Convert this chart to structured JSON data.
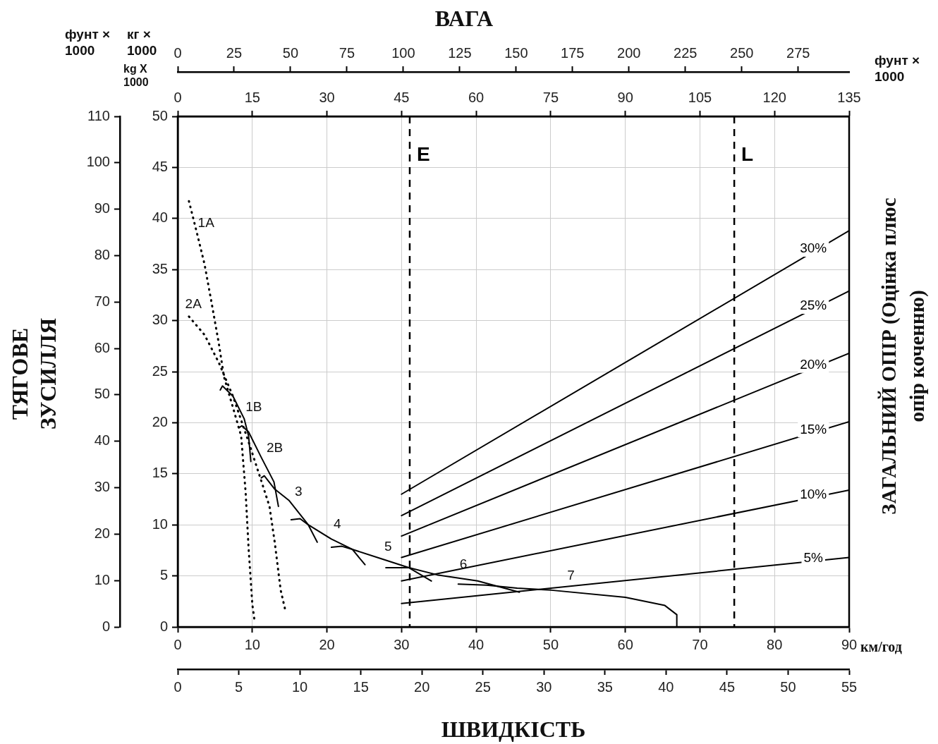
{
  "chart_data": {
    "type": "line",
    "xlabel": "ШВИДКІСТЬ",
    "x2label": "ВАГА",
    "ylabel": "ТЯГОВЕ ЗУСИЛЛЯ",
    "y2label": "ЗАГАЛЬНИЙ ОПІР (Оцінка плюс опір коченню)",
    "xlim": [
      0,
      90
    ],
    "xticks": [
      0,
      10,
      20,
      30,
      40,
      50,
      60,
      70,
      80,
      90
    ],
    "x2lim": [
      0,
      297.6
    ],
    "x2ticks": [
      0,
      25,
      50,
      75,
      100,
      125,
      150,
      175,
      200,
      225,
      250,
      275
    ],
    "ylim": [
      0,
      50
    ],
    "yticks": [
      0,
      5,
      10,
      15,
      20,
      25,
      30,
      35,
      40,
      45,
      50
    ],
    "y3lim": [
      0,
      110
    ],
    "y3ticks": [
      0,
      10,
      20,
      30,
      40,
      50,
      60,
      70,
      80,
      90,
      100,
      110
    ],
    "grid": true,
    "legend": false,
    "marker": "none",
    "series": [
      {
        "color": "#000000",
        "line_style": "dotted",
        "x": [
          1.5,
          2.6,
          3.6,
          4.5,
          5.5,
          6.2,
          7.4,
          8.5,
          9.1,
          9.5,
          10.0,
          10.3
        ],
        "values": [
          41.7,
          38.5,
          35.5,
          31.9,
          27.8,
          24.5,
          21.5,
          18.7,
          13.2,
          7.7,
          2.2,
          0.6
        ]
      },
      {
        "color": "#000000",
        "line_style": "dotted",
        "x": [
          1.5,
          3.6,
          5.5,
          7.4,
          9.6,
          11.2,
          12.3,
          13.0,
          13.8,
          14.4
        ],
        "values": [
          30.4,
          28.6,
          25.9,
          22.6,
          17.9,
          14.3,
          11.8,
          8.3,
          3.6,
          1.7
        ]
      },
      {
        "color": "#000000",
        "line_style": "solid",
        "x": [
          5.7,
          6.0,
          7.4,
          8.9,
          9.5,
          9.8
        ],
        "values": [
          23.2,
          23.6,
          22.6,
          20.4,
          18.7,
          16.2
        ]
      },
      {
        "color": "#000000",
        "line_style": "solid",
        "x": [
          8.2,
          8.6,
          9.5,
          11.2,
          12.9,
          13.5
        ],
        "values": [
          19.5,
          19.7,
          19.1,
          16.6,
          14.2,
          11.8
        ]
      },
      {
        "color": "#000000",
        "line_style": "solid",
        "x": [
          11.2,
          11.6,
          13.0,
          14.9,
          17.5,
          18.7
        ],
        "values": [
          14.6,
          14.8,
          13.5,
          12.4,
          10.0,
          8.3
        ]
      },
      {
        "color": "#000000",
        "line_style": "solid",
        "x": [
          15.2,
          16.4,
          17.5,
          20.6,
          23.4,
          25.1
        ],
        "values": [
          10.5,
          10.6,
          10.0,
          8.6,
          7.6,
          6.1
        ]
      },
      {
        "color": "#000000",
        "line_style": "solid",
        "x": [
          20.6,
          22.0,
          23.4,
          27.2,
          31.0,
          34.0
        ],
        "values": [
          7.8,
          7.9,
          7.6,
          6.7,
          5.8,
          4.5
        ]
      },
      {
        "color": "#000000",
        "line_style": "solid",
        "x": [
          27.9,
          29.1,
          31.0,
          34.8,
          40.2,
          45.8
        ],
        "values": [
          5.8,
          5.8,
          5.8,
          5.1,
          4.5,
          3.4
        ]
      },
      {
        "color": "#000000",
        "line_style": "solid",
        "x": [
          37.6,
          41.4,
          45.5,
          50.1,
          60.0,
          65.3,
          66.9,
          66.9
        ],
        "values": [
          4.2,
          4.1,
          3.8,
          3.6,
          2.9,
          2.1,
          1.2,
          0.1
        ]
      },
      {
        "name": "30%",
        "color": "#000000",
        "line_style": "solid",
        "x": [
          30,
          90
        ],
        "values": [
          13.0,
          38.8
        ]
      },
      {
        "name": "25%",
        "color": "#000000",
        "line_style": "solid",
        "x": [
          30,
          90
        ],
        "values": [
          10.9,
          32.9
        ]
      },
      {
        "name": "20%",
        "color": "#000000",
        "line_style": "solid",
        "x": [
          30,
          90
        ],
        "values": [
          8.9,
          26.8
        ]
      },
      {
        "name": "15%",
        "color": "#000000",
        "line_style": "solid",
        "x": [
          30,
          90
        ],
        "values": [
          6.8,
          20.1
        ]
      },
      {
        "name": "10%",
        "color": "#000000",
        "line_style": "solid",
        "x": [
          30,
          90
        ],
        "values": [
          4.5,
          13.4
        ]
      },
      {
        "name": "5%",
        "color": "#000000",
        "line_style": "solid",
        "x": [
          30,
          90
        ],
        "values": [
          2.3,
          6.8
        ]
      }
    ],
    "ref_lines": [
      {
        "axis": "x",
        "value": 31.1,
        "label": "E",
        "line_style": "dashed",
        "color": "#000000"
      },
      {
        "axis": "x",
        "value": 74.6,
        "label": "L",
        "line_style": "dashed",
        "color": "#000000"
      }
    ],
    "annotations": [
      "км/год",
      "фунт × 1000",
      "фунт × 1000",
      "кг × 1000",
      "kg X 1000",
      "1A",
      "2A",
      "1B",
      "2B",
      "3",
      "4",
      "5",
      "6",
      "7",
      "0",
      "15",
      "30",
      "45",
      "60",
      "75",
      "90",
      "105",
      "120",
      "135",
      "0",
      "5",
      "10",
      "15",
      "20",
      "25",
      "30",
      "35",
      "40",
      "45",
      "50",
      "55"
    ]
  }
}
